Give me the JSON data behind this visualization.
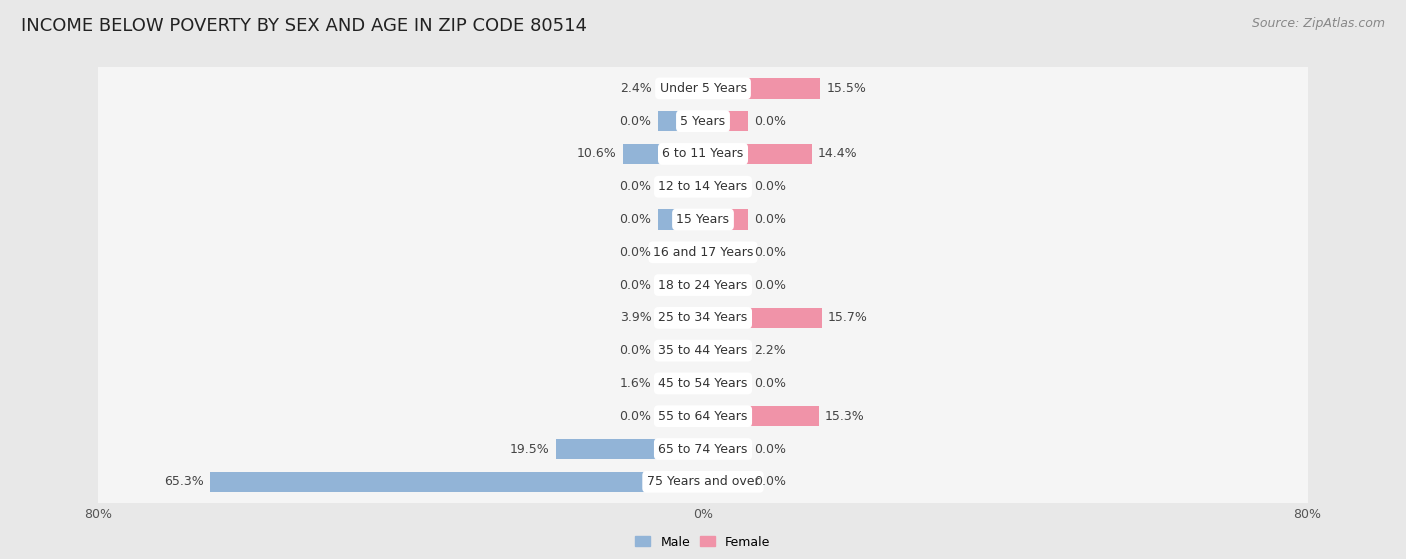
{
  "title": "INCOME BELOW POVERTY BY SEX AND AGE IN ZIP CODE 80514",
  "source": "Source: ZipAtlas.com",
  "categories": [
    "Under 5 Years",
    "5 Years",
    "6 to 11 Years",
    "12 to 14 Years",
    "15 Years",
    "16 and 17 Years",
    "18 to 24 Years",
    "25 to 34 Years",
    "35 to 44 Years",
    "45 to 54 Years",
    "55 to 64 Years",
    "65 to 74 Years",
    "75 Years and over"
  ],
  "male": [
    2.4,
    0.0,
    10.6,
    0.0,
    0.0,
    0.0,
    0.0,
    3.9,
    0.0,
    1.6,
    0.0,
    19.5,
    65.3
  ],
  "female": [
    15.5,
    0.0,
    14.4,
    0.0,
    0.0,
    0.0,
    0.0,
    15.7,
    2.2,
    0.0,
    15.3,
    0.0,
    0.0
  ],
  "male_color": "#92b4d7",
  "female_color": "#f093a8",
  "male_label": "Male",
  "female_label": "Female",
  "xlim": 80.0,
  "min_bar": 6.0,
  "background_color": "#e8e8e8",
  "row_bg_color": "#f5f5f5",
  "label_bg_color": "#ffffff",
  "title_fontsize": 13,
  "source_fontsize": 9,
  "value_fontsize": 9,
  "category_fontsize": 9,
  "tick_fontsize": 9
}
